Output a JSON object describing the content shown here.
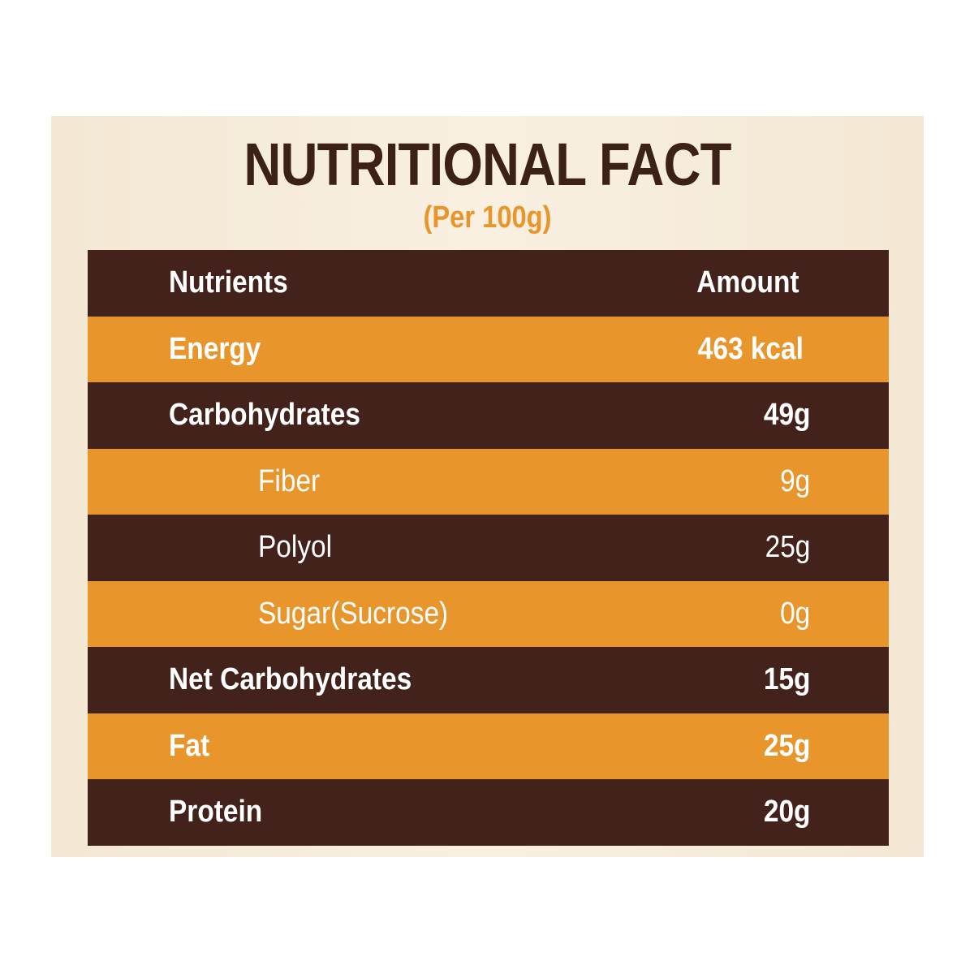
{
  "title": "NUTRITIONAL FACT",
  "subtitle": "(Per 100g)",
  "header": {
    "nutrients_label": "Nutrients",
    "amount_label": "Amount"
  },
  "rows": [
    {
      "name": "Energy",
      "amount": "463 kcal"
    },
    {
      "name": "Carbohydrates",
      "amount": "49g"
    },
    {
      "name": "Fiber",
      "amount": "9g"
    },
    {
      "name": "Polyol",
      "amount": "25g"
    },
    {
      "name": "Sugar(Sucrose)",
      "amount": "0g"
    },
    {
      "name": "Net Carbohydrates",
      "amount": "15g"
    },
    {
      "name": "Fat",
      "amount": "25g"
    },
    {
      "name": "Protein",
      "amount": "20g"
    }
  ],
  "colors": {
    "dark_row": "#42221b",
    "light_row": "#e8952b",
    "title": "#3c2118",
    "subtitle": "#e8952b",
    "panel_background": "#f6ecdb"
  }
}
